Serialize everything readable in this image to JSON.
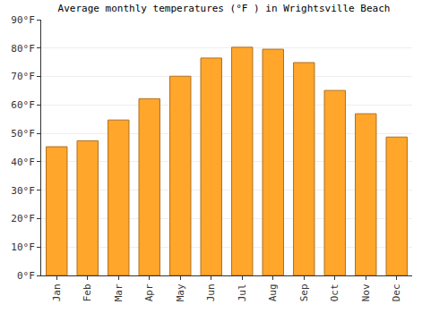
{
  "chart_data": {
    "type": "bar",
    "title": "Average monthly temperatures (°F ) in Wrightsville Beach",
    "categories": [
      "Jan",
      "Feb",
      "Mar",
      "Apr",
      "May",
      "Jun",
      "Jul",
      "Aug",
      "Sep",
      "Oct",
      "Nov",
      "Dec"
    ],
    "values": [
      45.3,
      47.4,
      54.7,
      62.2,
      70.1,
      76.5,
      80.3,
      79.6,
      74.9,
      65.1,
      56.9,
      48.7
    ],
    "color": "#ffa62b",
    "ylim": [
      0,
      90
    ],
    "yticks": [
      {
        "value": 0,
        "label": "0°F"
      },
      {
        "value": 10,
        "label": "10°F"
      },
      {
        "value": 20,
        "label": "20°F"
      },
      {
        "value": 30,
        "label": "30°F"
      },
      {
        "value": 40,
        "label": "40°F"
      },
      {
        "value": 50,
        "label": "50°F"
      },
      {
        "value": 60,
        "label": "60°F"
      },
      {
        "value": 70,
        "label": "70°F"
      },
      {
        "value": 80,
        "label": "80°F"
      },
      {
        "value": 90,
        "label": "90°F"
      }
    ],
    "grid": true
  }
}
